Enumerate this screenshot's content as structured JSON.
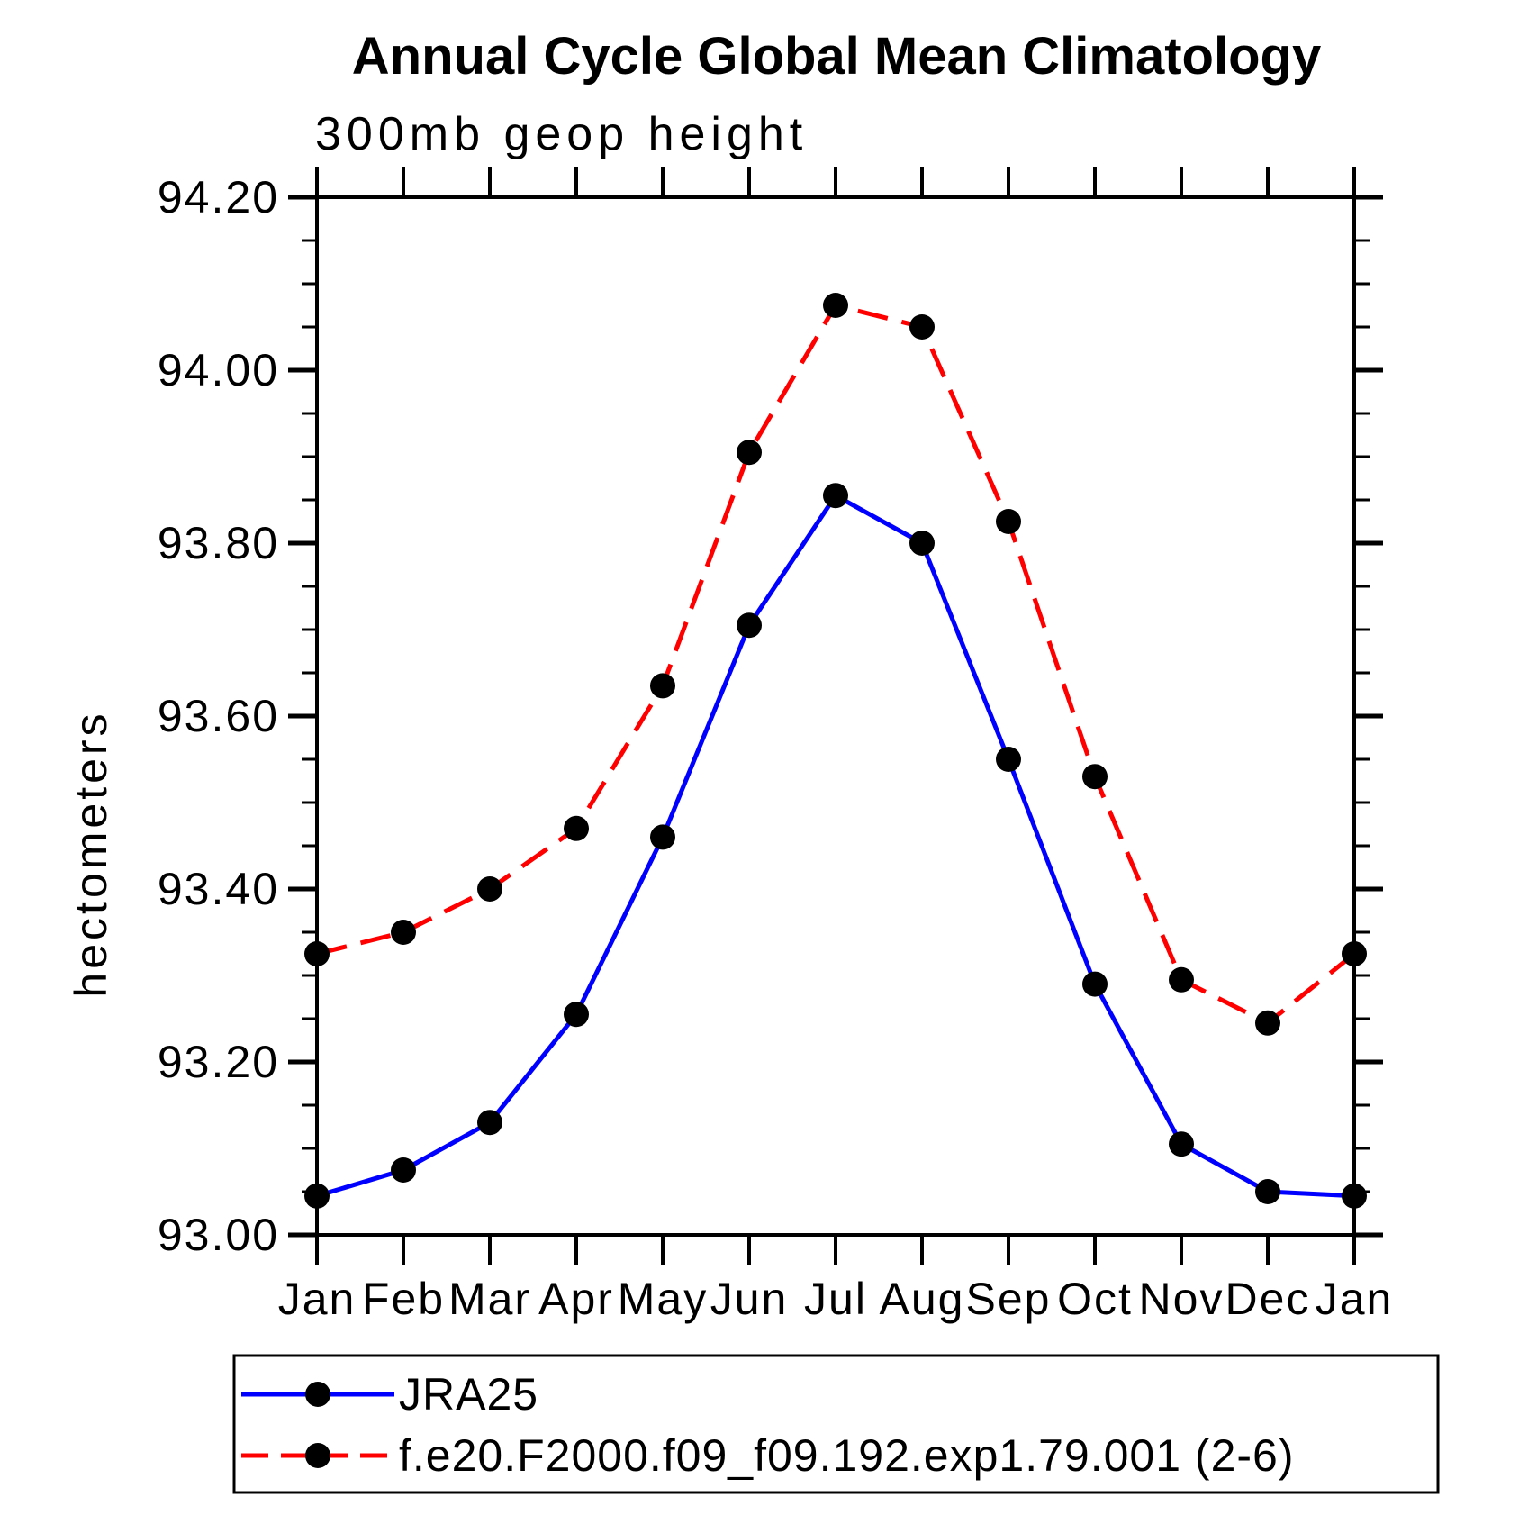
{
  "chart_data": {
    "type": "line",
    "title": "Annual Cycle Global Mean Climatology",
    "subtitle": "300mb geop height",
    "ylabel": "hectometers",
    "xlabel": "",
    "categories": [
      "Jan",
      "Feb",
      "Mar",
      "Apr",
      "May",
      "Jun",
      "Jul",
      "Aug",
      "Sep",
      "Oct",
      "Nov",
      "Dec",
      "Jan"
    ],
    "ylim": [
      93.0,
      94.2
    ],
    "y_major_step": 0.2,
    "y_minor_step": 0.05,
    "y_tick_labels": [
      "93.00",
      "93.20",
      "93.40",
      "93.60",
      "93.80",
      "94.00",
      "94.20"
    ],
    "grid": false,
    "axis_color": "#000000",
    "marker_color": "#000000",
    "legend_position": "bottom-left-box",
    "series": [
      {
        "name": "JRA25",
        "color": "#0000ff",
        "style": "solid",
        "marker": "circle",
        "values": [
          93.045,
          93.075,
          93.13,
          93.255,
          93.46,
          93.705,
          93.855,
          93.8,
          93.55,
          93.29,
          93.105,
          93.05,
          93.045
        ]
      },
      {
        "name": "f.e20.F2000.f09_f09.192.exp1.79.001 (2-6)",
        "color": "#ff0000",
        "style": "dashed",
        "marker": "circle",
        "values": [
          93.325,
          93.35,
          93.4,
          93.47,
          93.635,
          93.905,
          94.075,
          94.05,
          93.825,
          93.53,
          93.295,
          93.245,
          93.325
        ]
      }
    ]
  }
}
